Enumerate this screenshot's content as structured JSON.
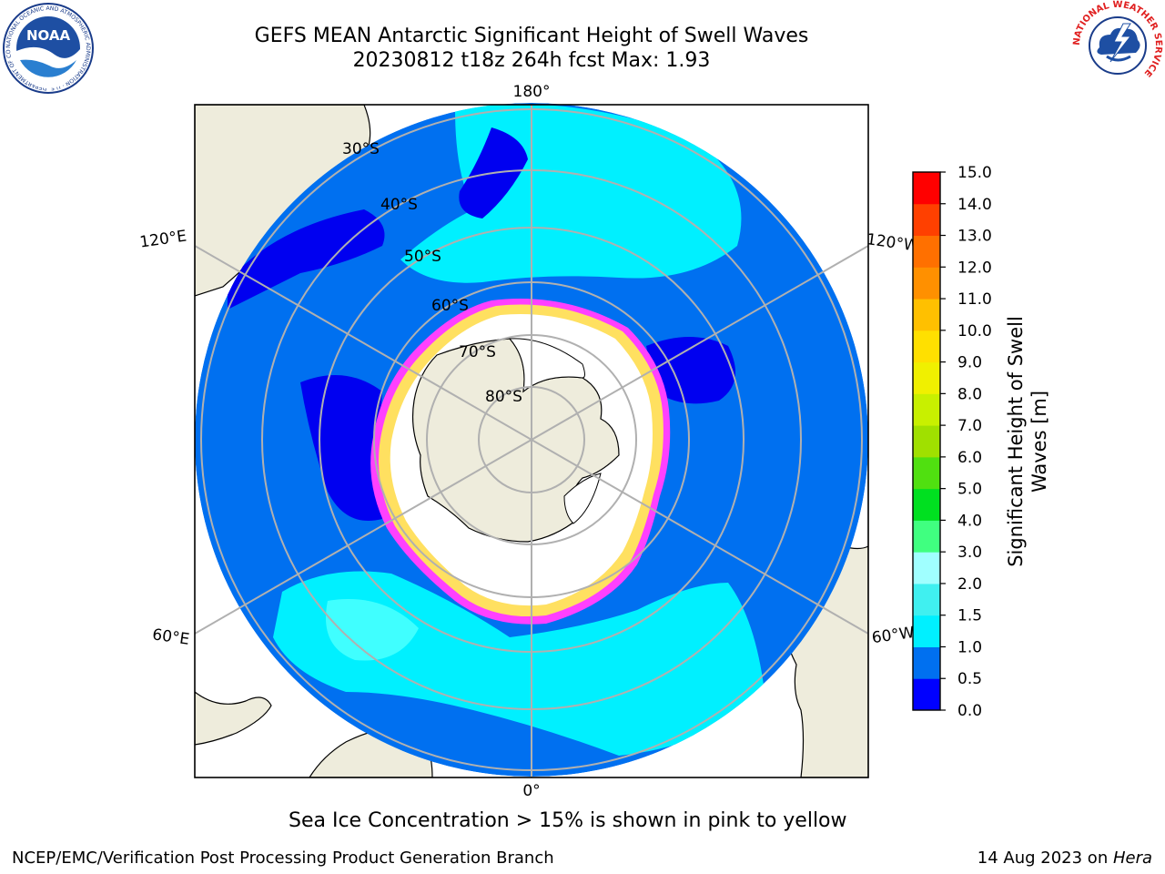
{
  "title": {
    "line1": "GEFS MEAN Antarctic Significant Height of Swell Waves",
    "line2": "20230812 t18z 264h fcst   Max: 1.93"
  },
  "map": {
    "projection": "south-polar-stereographic",
    "colors": {
      "land": "#eeecdc",
      "ocean_0_0_5": "#0000f0",
      "ocean_0_5_1_0": "#0070f0",
      "ocean_1_0_1_5": "#00f0ff",
      "ocean_1_5_2_0": "#40ffff",
      "ice_low": "#ff40ff",
      "ice_high": "#ffe060",
      "ice_cover": "#ffffff",
      "grid": "#b0b0b0"
    },
    "longitude_labels": [
      "180°",
      "120°E",
      "120°W",
      "60°E",
      "60°W",
      "0°"
    ],
    "latitude_labels": [
      "30°S",
      "40°S",
      "50°S",
      "60°S",
      "70°S",
      "80°S"
    ]
  },
  "colorbar": {
    "label": "Significant Height of Swell Waves [m]",
    "label_line1": "Significant Height of Swell",
    "label_line2": "Waves [m]",
    "levels": [
      "0.0",
      "0.5",
      "1.0",
      "1.5",
      "2.0",
      "3.0",
      "4.0",
      "5.0",
      "6.0",
      "7.0",
      "8.0",
      "9.0",
      "10.0",
      "11.0",
      "12.0",
      "13.0",
      "14.0",
      "15.0"
    ],
    "colors": [
      "#0000ff",
      "#0070f0",
      "#00f0ff",
      "#40f0f0",
      "#a0ffff",
      "#40ff80",
      "#00e020",
      "#50e010",
      "#a0e000",
      "#c8f000",
      "#f0f000",
      "#ffe000",
      "#ffc000",
      "#ff9000",
      "#ff7000",
      "#ff4000",
      "#ff0000"
    ]
  },
  "caption": "Sea Ice Concentration > 15% is shown in pink to yellow",
  "footer": {
    "left": "NCEP/EMC/Verification Post Processing Product Generation Branch",
    "right_prefix": "14 Aug 2023 on ",
    "right_machine": "Hera"
  },
  "logos": {
    "noaa_text": "NOAA",
    "noaa_ring": "NATIONAL OCEANIC AND ATMOSPHERIC ADMINISTRATION · U.S. DEPARTMENT OF COMMERCE",
    "nws_ring": "NATIONAL WEATHER SERVICE"
  }
}
